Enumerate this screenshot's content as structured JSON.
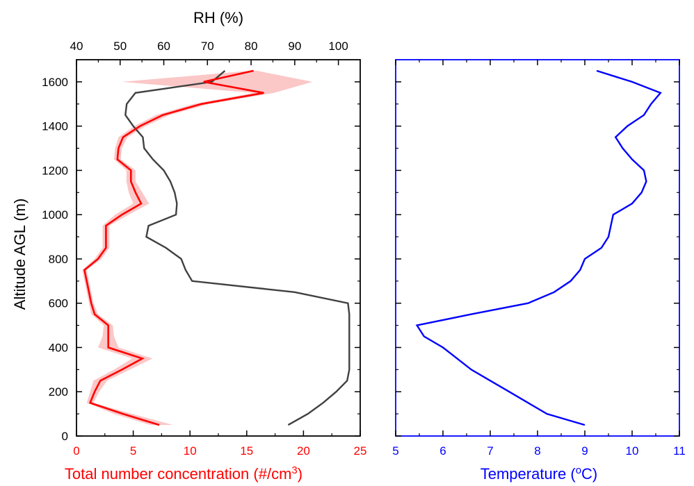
{
  "chart_data": [
    {
      "type": "line",
      "panel": "left",
      "ylabel": "Altitude AGL (m)",
      "ylim": [
        0,
        1700
      ],
      "yticks": [
        0,
        200,
        400,
        600,
        800,
        1000,
        1200,
        1400,
        1600
      ],
      "xlabel_bottom": "Total number concentration (#/cm",
      "xlabel_bottom_sup": "3",
      "xlabel_bottom_end": ")",
      "xlim_bottom": [
        0,
        25
      ],
      "xticks_bottom": [
        0,
        5,
        10,
        15,
        20,
        25
      ],
      "xlabel_top": "RH (%)",
      "xlim_top": [
        40,
        105
      ],
      "xticks_top": [
        40,
        50,
        60,
        70,
        80,
        90,
        100
      ],
      "colors": {
        "concentration": "#ff0000",
        "band": "#f9b4b4",
        "rh": "#404040"
      },
      "series": [
        {
          "axis": "bottom",
          "color": "#ff0000",
          "points": [
            [
              7.3,
              50
            ],
            [
              4.1,
              100
            ],
            [
              1.2,
              150
            ],
            [
              1.6,
              200
            ],
            [
              2.1,
              250
            ],
            [
              4.0,
              300
            ],
            [
              5.8,
              350
            ],
            [
              2.8,
              400
            ],
            [
              2.8,
              450
            ],
            [
              2.8,
              500
            ],
            [
              1.6,
              550
            ],
            [
              1.3,
              600
            ],
            [
              1.1,
              650
            ],
            [
              0.9,
              700
            ],
            [
              0.7,
              750
            ],
            [
              1.9,
              800
            ],
            [
              2.6,
              850
            ],
            [
              2.6,
              900
            ],
            [
              2.6,
              950
            ],
            [
              4.0,
              1000
            ],
            [
              5.7,
              1050
            ],
            [
              5.2,
              1100
            ],
            [
              4.8,
              1150
            ],
            [
              4.8,
              1200
            ],
            [
              3.6,
              1250
            ],
            [
              3.7,
              1300
            ],
            [
              4.1,
              1350
            ],
            [
              5.6,
              1400
            ],
            [
              7.6,
              1450
            ],
            [
              11.0,
              1500
            ],
            [
              16.5,
              1550
            ],
            [
              11.2,
              1600
            ],
            [
              15.6,
              1650
            ]
          ],
          "band": [
            [
              50,
              6.5,
              8.5
            ],
            [
              100,
              3.3,
              4.9
            ],
            [
              150,
              0.9,
              1.5
            ],
            [
              200,
              1.2,
              2.0
            ],
            [
              250,
              1.5,
              2.7
            ],
            [
              300,
              3.3,
              4.7
            ],
            [
              350,
              4.9,
              6.7
            ],
            [
              400,
              1.9,
              3.7
            ],
            [
              450,
              2.3,
              3.3
            ],
            [
              500,
              2.4,
              3.2
            ],
            [
              550,
              1.3,
              1.9
            ],
            [
              600,
              1.1,
              1.5
            ],
            [
              650,
              0.9,
              1.3
            ],
            [
              700,
              0.7,
              1.1
            ],
            [
              750,
              0.5,
              0.9
            ],
            [
              800,
              1.6,
              2.2
            ],
            [
              850,
              2.3,
              2.9
            ],
            [
              900,
              2.3,
              2.9
            ],
            [
              950,
              2.3,
              2.9
            ],
            [
              1000,
              3.4,
              4.6
            ],
            [
              1050,
              5.0,
              6.4
            ],
            [
              1100,
              4.6,
              5.8
            ],
            [
              1150,
              4.4,
              5.2
            ],
            [
              1200,
              4.4,
              5.2
            ],
            [
              1250,
              3.3,
              3.9
            ],
            [
              1300,
              3.4,
              4.0
            ],
            [
              1350,
              3.7,
              4.5
            ],
            [
              1400,
              5.1,
              6.1
            ],
            [
              1450,
              7.0,
              8.2
            ],
            [
              1500,
              10.3,
              11.7
            ],
            [
              1550,
              15.6,
              17.4
            ],
            [
              1600,
              4.0,
              20.8
            ],
            [
              1650,
              15.3,
              15.9
            ]
          ]
        },
        {
          "axis": "top",
          "color": "#404040",
          "points": [
            [
              88.5,
              50
            ],
            [
              93,
              100
            ],
            [
              96.5,
              150
            ],
            [
              99.5,
              200
            ],
            [
              102,
              250
            ],
            [
              102.5,
              300
            ],
            [
              102.5,
              400
            ],
            [
              102.5,
              500
            ],
            [
              102.5,
              550
            ],
            [
              102.2,
              600
            ],
            [
              90,
              650
            ],
            [
              66.5,
              700
            ],
            [
              65,
              750
            ],
            [
              64,
              800
            ],
            [
              60.5,
              850
            ],
            [
              56,
              900
            ],
            [
              56.5,
              950
            ],
            [
              62.8,
              1000
            ],
            [
              63,
              1050
            ],
            [
              62.5,
              1100
            ],
            [
              61.5,
              1150
            ],
            [
              60,
              1200
            ],
            [
              57.5,
              1250
            ],
            [
              55.5,
              1300
            ],
            [
              55.2,
              1350
            ],
            [
              53,
              1400
            ],
            [
              51.2,
              1450
            ],
            [
              51.5,
              1500
            ],
            [
              53.5,
              1550
            ],
            [
              71,
              1600
            ],
            [
              74,
              1650
            ]
          ]
        }
      ]
    },
    {
      "type": "line",
      "panel": "right",
      "xlabel": "Temperature (",
      "xlabel_sup": "o",
      "xlabel_end": "C)",
      "xlim": [
        5,
        11
      ],
      "xticks": [
        5,
        6,
        7,
        8,
        9,
        10,
        11
      ],
      "ylim": [
        0,
        1700
      ],
      "colors": {
        "temperature": "#0000ff"
      },
      "series": [
        {
          "color": "#0000ff",
          "points": [
            [
              9.0,
              50
            ],
            [
              8.2,
              100
            ],
            [
              7.8,
              150
            ],
            [
              7.4,
              200
            ],
            [
              7.0,
              250
            ],
            [
              6.6,
              300
            ],
            [
              6.3,
              350
            ],
            [
              6.0,
              400
            ],
            [
              5.6,
              450
            ],
            [
              5.45,
              500
            ],
            [
              6.6,
              550
            ],
            [
              7.8,
              600
            ],
            [
              8.35,
              650
            ],
            [
              8.7,
              700
            ],
            [
              8.9,
              750
            ],
            [
              9.0,
              800
            ],
            [
              9.35,
              850
            ],
            [
              9.5,
              900
            ],
            [
              9.55,
              950
            ],
            [
              9.6,
              1000
            ],
            [
              10.0,
              1050
            ],
            [
              10.2,
              1100
            ],
            [
              10.3,
              1150
            ],
            [
              10.25,
              1200
            ],
            [
              10.0,
              1250
            ],
            [
              9.8,
              1300
            ],
            [
              9.65,
              1350
            ],
            [
              9.9,
              1400
            ],
            [
              10.25,
              1450
            ],
            [
              10.4,
              1500
            ],
            [
              10.6,
              1550
            ],
            [
              10.0,
              1600
            ],
            [
              9.25,
              1650
            ]
          ]
        }
      ]
    }
  ]
}
